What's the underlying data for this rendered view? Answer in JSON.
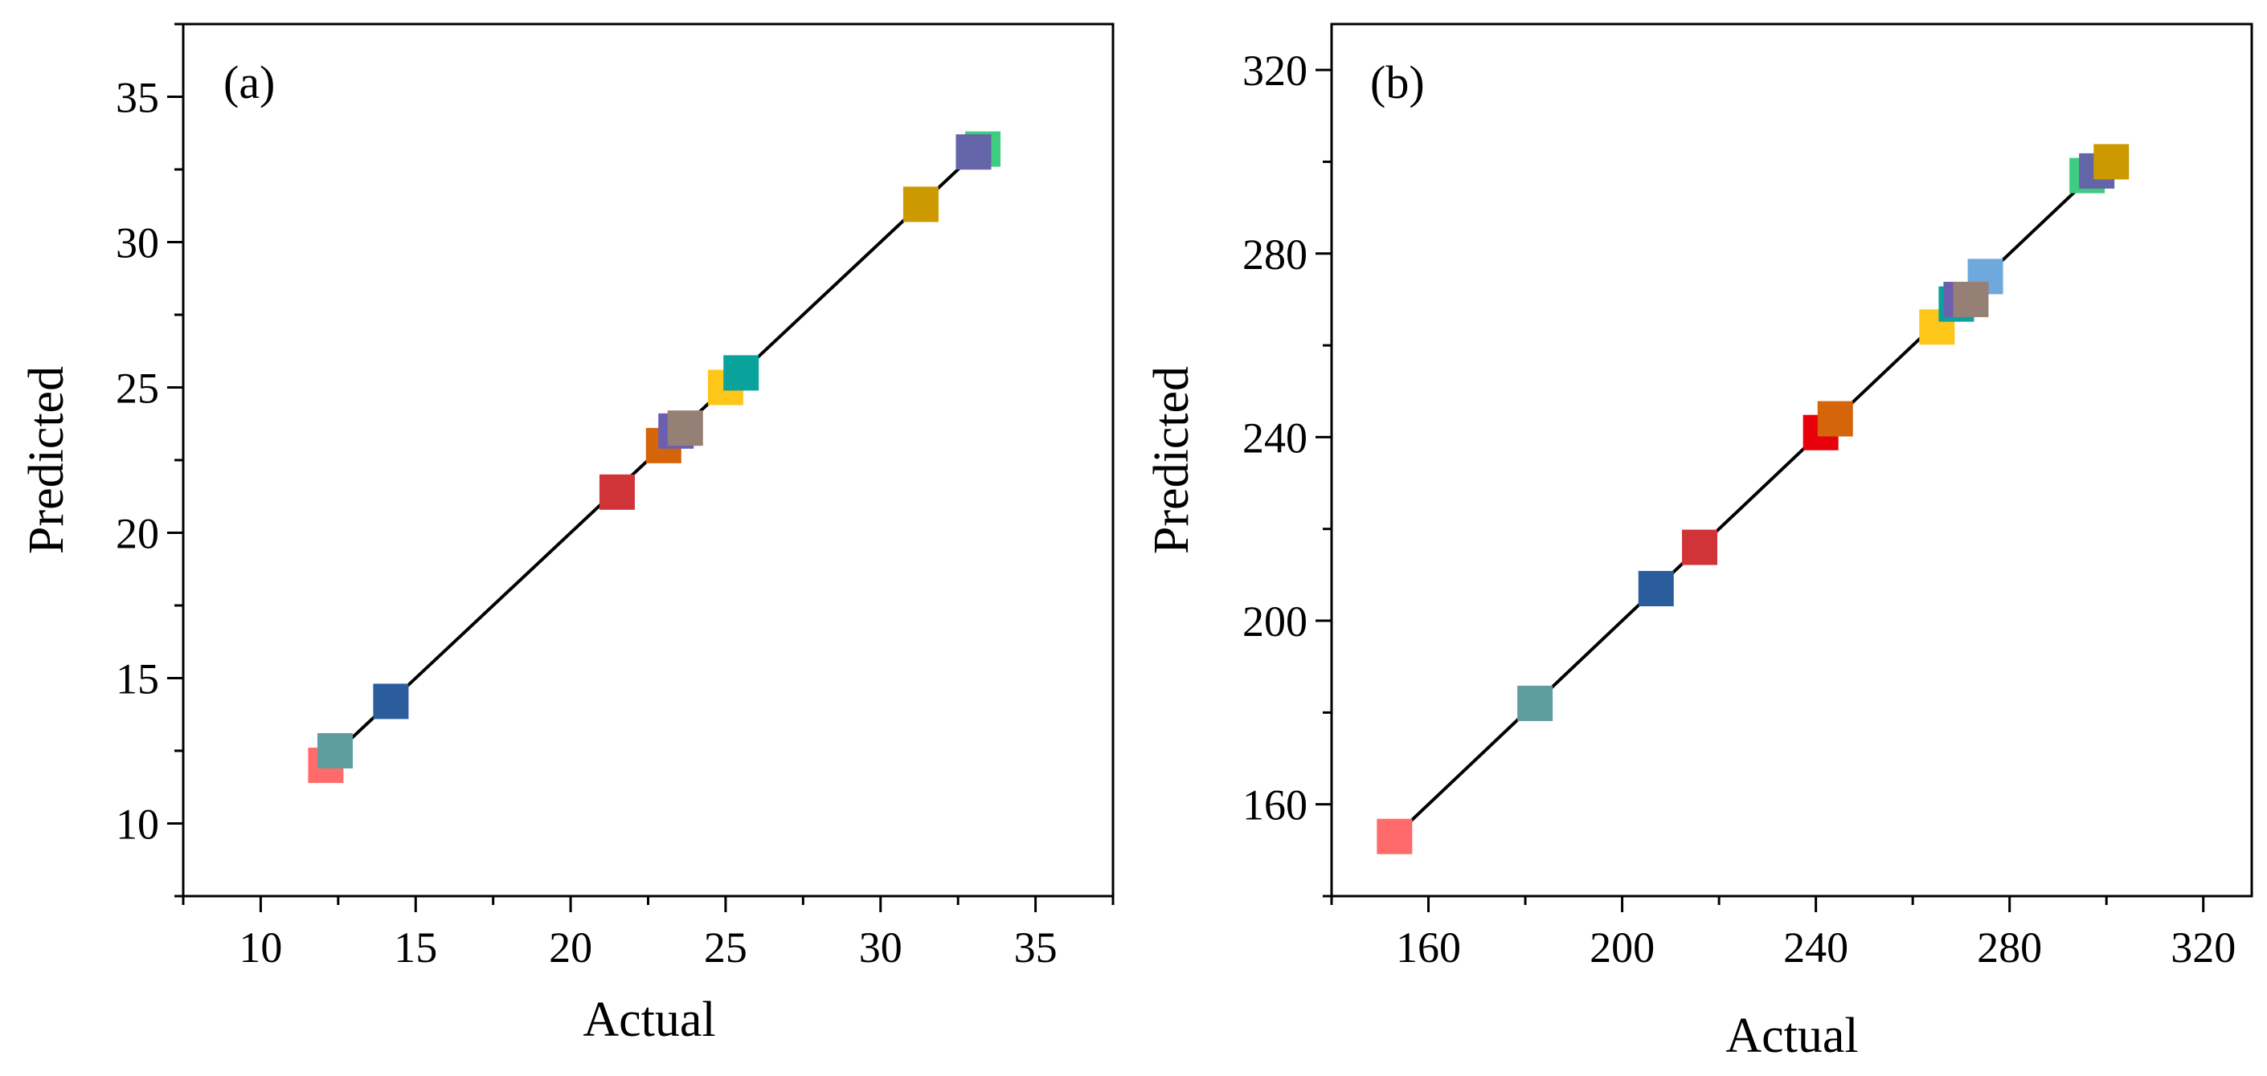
{
  "figure": {
    "description_panels": [
      "a",
      "b"
    ]
  },
  "chart_data": [
    {
      "type": "scatter",
      "panel_label": "(a)",
      "xlabel": "Actual",
      "ylabel": "Predicted",
      "xlim": [
        7.5,
        37.5
      ],
      "ylim": [
        7.5,
        37.5
      ],
      "xticks": [
        10,
        15,
        20,
        25,
        30,
        35
      ],
      "yticks": [
        10,
        15,
        20,
        25,
        30,
        35
      ],
      "fit_line": {
        "x": [
          12.0,
          33.3
        ],
        "y": [
          12.0,
          33.3
        ]
      },
      "points": [
        {
          "x": 12.1,
          "y": 12.0,
          "color": "#ff6b6b"
        },
        {
          "x": 12.4,
          "y": 12.5,
          "color": "#5f9ea0"
        },
        {
          "x": 14.2,
          "y": 14.2,
          "color": "#2b5d9c"
        },
        {
          "x": 21.5,
          "y": 21.4,
          "color": "#d13438"
        },
        {
          "x": 23.0,
          "y": 23.0,
          "color": "#d4650a"
        },
        {
          "x": 23.4,
          "y": 23.5,
          "color": "#6a5fb0"
        },
        {
          "x": 23.7,
          "y": 23.6,
          "color": "#968075"
        },
        {
          "x": 25.0,
          "y": 25.0,
          "color": "#ffc61a"
        },
        {
          "x": 25.5,
          "y": 25.5,
          "color": "#0aa39c"
        },
        {
          "x": 31.3,
          "y": 31.3,
          "color": "#cc9900"
        },
        {
          "x": 33.3,
          "y": 33.2,
          "color": "#3ecc80"
        },
        {
          "x": 33.0,
          "y": 33.1,
          "color": "#6464a8"
        }
      ]
    },
    {
      "type": "scatter",
      "panel_label": "(b)",
      "xlabel": "Actual",
      "ylabel": "Predicted",
      "xlim": [
        140,
        330
      ],
      "ylim": [
        140,
        330
      ],
      "xticks": [
        160,
        200,
        240,
        280,
        320
      ],
      "yticks": [
        160,
        200,
        240,
        280,
        320
      ],
      "fit_line": {
        "x": [
          153,
          300
        ],
        "y": [
          153,
          300
        ]
      },
      "points": [
        {
          "x": 153,
          "y": 153,
          "color": "#ff6b6b"
        },
        {
          "x": 182,
          "y": 182,
          "color": "#5f9ea0"
        },
        {
          "x": 207,
          "y": 207,
          "color": "#2b5d9c"
        },
        {
          "x": 216,
          "y": 216,
          "color": "#d13438"
        },
        {
          "x": 241,
          "y": 241,
          "color": "#e8000a"
        },
        {
          "x": 244,
          "y": 244,
          "color": "#d4650a"
        },
        {
          "x": 265,
          "y": 264,
          "color": "#ffc61a"
        },
        {
          "x": 269,
          "y": 269,
          "color": "#0aa39c"
        },
        {
          "x": 270,
          "y": 270,
          "color": "#6a5fb0"
        },
        {
          "x": 275,
          "y": 275,
          "color": "#6ea8dc"
        },
        {
          "x": 272,
          "y": 270,
          "color": "#968075"
        },
        {
          "x": 296,
          "y": 297,
          "color": "#3ecc80"
        },
        {
          "x": 298,
          "y": 298,
          "color": "#6464a8"
        },
        {
          "x": 301,
          "y": 300,
          "color": "#cc9900"
        }
      ]
    }
  ]
}
